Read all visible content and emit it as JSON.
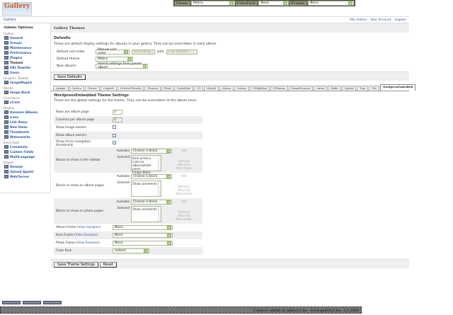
{
  "topbar": {
    "theme_label": "Theme:",
    "theme_value": "Matrix",
    "colorpack_label": "ColorPack:",
    "colorpack_value": "None",
    "frames_label": "Frames:",
    "frames_value": "None"
  },
  "logo": {
    "text": "Gallery"
  },
  "breadcrumb": {
    "item": "Gallery",
    "links": [
      "Site Admin",
      "Your Account",
      "Logout"
    ]
  },
  "sidebar": {
    "title": "Admin Options",
    "groups": [
      {
        "label": "Gallery",
        "items": [
          "General",
          "Groups",
          "Maintenance",
          "Performance",
          "Plugins",
          "Themes",
          "URL Rewrite",
          "Users"
        ]
      },
      {
        "label": "Graphics Toolkits",
        "items": [
          "ImageMagick"
        ]
      },
      {
        "label": "Blocks",
        "items": [
          "Image Block"
        ]
      },
      {
        "label": "Commerce",
        "items": [
          "eCard"
        ]
      },
      {
        "label": "Display",
        "items": [
          "Dynamic Albums",
          "Icons",
          "Link Items",
          "New Items",
          "Thumbnails",
          "Watermarks"
        ]
      },
      {
        "label": "Extra Data",
        "items": [
          "Comments",
          "Custom Fields",
          "MultiLanguage"
        ]
      },
      {
        "label": "Import",
        "items": [
          "Remote",
          "Upload Applet",
          "Web/Server"
        ]
      }
    ],
    "current": "Themes"
  },
  "main": {
    "title": "Gallery Themes",
    "defaults": {
      "heading": "Defaults",
      "description": "These are default display settings for albums in your gallery. They can be overridden in each album.",
      "sort_label": "Default sort order",
      "sort_value": "Manual sort order",
      "sort_dir": "Ascending",
      "with_label": "with",
      "with_value": "« no presort »",
      "theme_label": "Default theme",
      "theme_value": "Matrix",
      "new_albums_label": "New albums",
      "new_albums_value": "Inherit settings from parent album",
      "save": "Save Defaults"
    },
    "tabs": [
      "Ajaxian",
      "Carbon",
      "Classic",
      "Copyleft",
      "EclecticThreads",
      "Floatrix",
      "Fluid",
      "PortaSlide",
      "G1",
      "Hybrid",
      "Matrix",
      "Nature",
      "PGlightbox",
      "PGtheme",
      "RoundCorners",
      "Siriux",
      "Slider",
      "Splash",
      "Tiny",
      "Tile",
      "WordpressEmbedded"
    ],
    "active_tab": "WordpressEmbedded",
    "settings": {
      "heading": "WordpressEmbedded Theme Settings",
      "description": "These are the global settings for the theme. They can be overridden at the album level.",
      "rows_label": "Rows per album page",
      "rows_value": "3",
      "cols_label": "Columns per album page",
      "cols_value": "3",
      "image_owners_label": "Show image owners",
      "image_owners": false,
      "album_owners_label": "Show album owners",
      "album_owners": true,
      "micro_label": "Show micro navigation thumbnails",
      "micro": false,
      "available_label": "Available",
      "selected_label": "Selected",
      "choose": "Choose a block",
      "add": "Add",
      "remove": "Remove",
      "up": "Move Up",
      "down": "Move Down",
      "sidebar_label": "Blocks to show in the sidebar",
      "sidebar_selected": [
        "Item actions",
        "Links to album/photo peers",
        "Image Block"
      ],
      "album_label": "Blocks to show on album pages",
      "album_selected": [
        "Show comments"
      ],
      "photo_label": "Blocks to show on photo pages",
      "photo_selected": [
        "Show comments"
      ],
      "album_frame_label": "Album Frame",
      "item_frame_label": "Item Frame",
      "photo_frame_label": "Photo Frame",
      "view_samples": "View Samples",
      "album_frame": "None",
      "item_frame": "None",
      "photo_frame": "None",
      "colorpack_label": "Color Pack",
      "colorpack": "embed",
      "save": "Save Theme Settings",
      "reset": "Reset"
    }
  },
  "footer": {
    "text": "Contact: admin at gallery2.hu - www.gallery2.hu - (c) 2006"
  }
}
